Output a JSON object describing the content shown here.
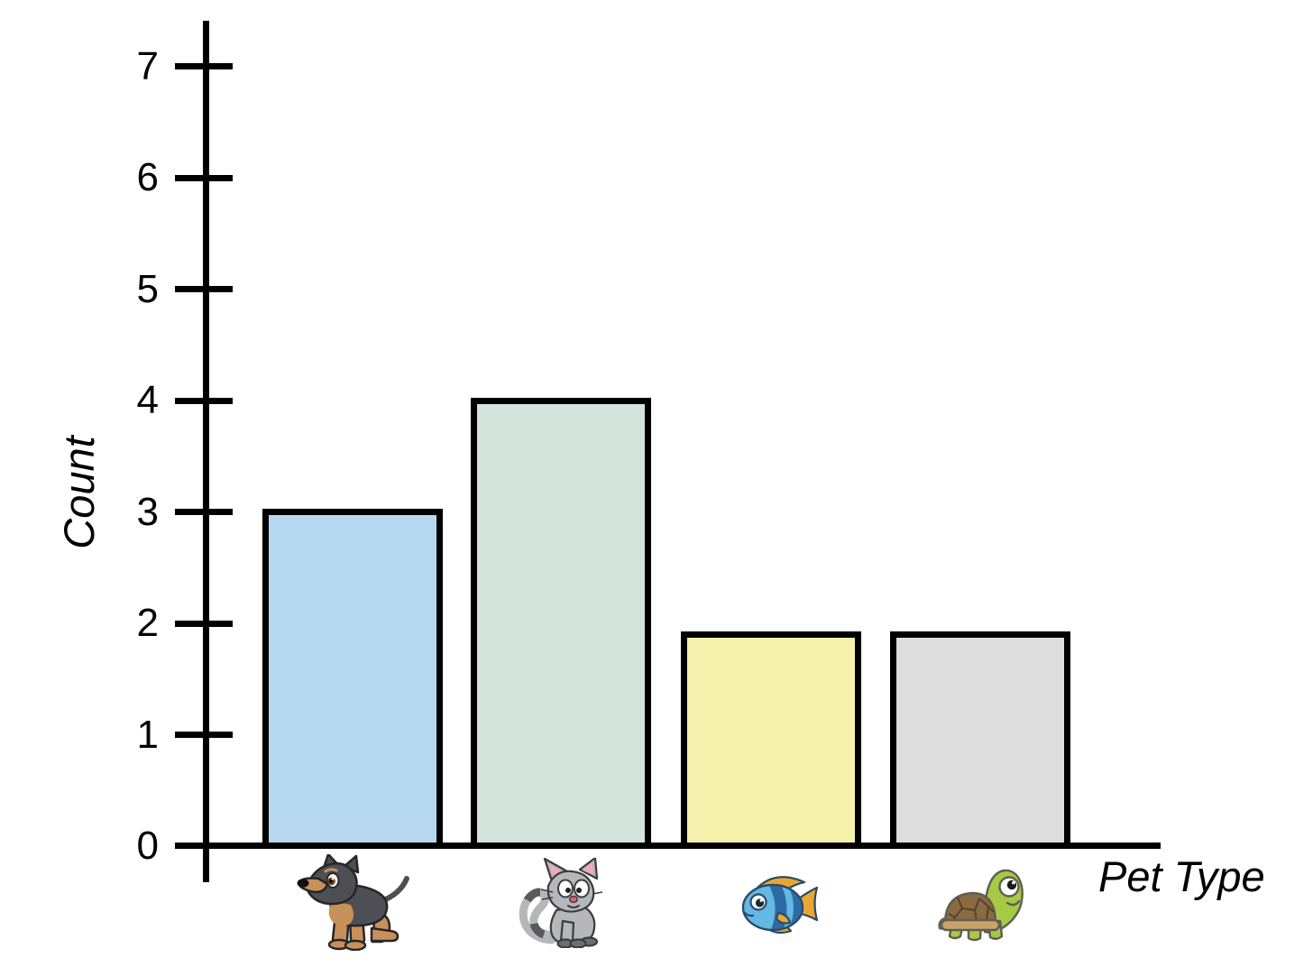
{
  "chart_data": {
    "type": "bar",
    "title": "",
    "xlabel": "Pet Type",
    "ylabel": "Count",
    "categories": [
      "Dog",
      "Cat",
      "Fish",
      "Turtle"
    ],
    "values": [
      3,
      4,
      1.9,
      1.9
    ],
    "bar_colors": [
      "#b5d7f0",
      "#d2e4db",
      "#f5f0ac",
      "#dddddd"
    ],
    "bar_border_color": "#000000",
    "axis_color": "#000000",
    "yticks": [
      0,
      1,
      2,
      3,
      4,
      5,
      6,
      7
    ],
    "ylim": [
      0,
      7.4
    ],
    "grid": false,
    "legend": null,
    "x_tick_icons": [
      "dog-icon",
      "cat-icon",
      "fish-icon",
      "turtle-icon"
    ]
  }
}
